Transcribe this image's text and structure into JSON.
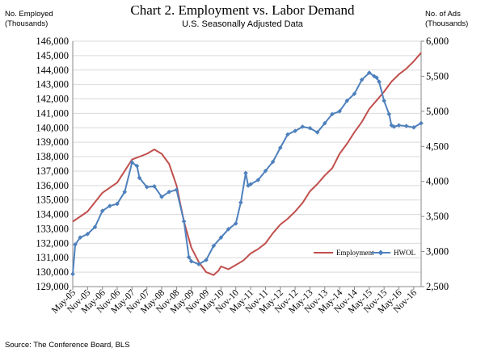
{
  "chart_data": {
    "type": "line",
    "title": "Chart 2. Employment vs. Labor Demand",
    "subtitle": "U.S. Seasonally Adjusted Data",
    "ylabel_left": [
      "No. Employed",
      "(Thousands)"
    ],
    "ylabel_right": [
      "No. of Ads",
      "(Thousands)"
    ],
    "source": "Source: The Conference Board, BLS",
    "ylim_left": [
      129000,
      146000
    ],
    "ylim_right": [
      2500,
      6000
    ],
    "yticks_left": [
      "129,000",
      "130,000",
      "131,000",
      "132,000",
      "133,000",
      "134,000",
      "135,000",
      "136,000",
      "137,000",
      "138,000",
      "139,000",
      "140,000",
      "141,000",
      "142,000",
      "143,000",
      "144,000",
      "145,000",
      "146,000"
    ],
    "yticks_right": [
      "2,500",
      "3,000",
      "3,500",
      "4,000",
      "4,500",
      "5,000",
      "5,500",
      "6,000"
    ],
    "xtick_labels": [
      "May-05",
      "Nov-05",
      "May-06",
      "Nov-06",
      "May-07",
      "Nov-07",
      "May-08",
      "Nov-08",
      "May-09",
      "Nov-09",
      "May-10",
      "Nov-10",
      "May-11",
      "Nov-11",
      "May-12",
      "Nov-12",
      "May-13",
      "Nov-13",
      "May-14",
      "Nov-14",
      "May-15",
      "Nov-15",
      "May-16",
      "Nov-16"
    ],
    "grid": true,
    "legend_position": "bottom-right",
    "series": [
      {
        "name": "Employment",
        "axis": "left",
        "color": "#c0504d",
        "points": [
          [
            "May-05",
            133500
          ],
          [
            "Nov-05",
            134200
          ],
          [
            "May-06",
            135500
          ],
          [
            "Nov-06",
            136200
          ],
          [
            "May-07",
            137800
          ],
          [
            "Nov-07",
            138200
          ],
          [
            "Feb-08",
            138500
          ],
          [
            "May-08",
            138200
          ],
          [
            "Aug-08",
            137500
          ],
          [
            "Nov-08",
            136000
          ],
          [
            "Feb-09",
            133500
          ],
          [
            "May-09",
            131700
          ],
          [
            "Aug-09",
            130700
          ],
          [
            "Nov-09",
            130000
          ],
          [
            "Feb-10",
            129800
          ],
          [
            "Apr-10",
            130100
          ],
          [
            "May-10",
            130400
          ],
          [
            "Aug-10",
            130200
          ],
          [
            "Nov-10",
            130500
          ],
          [
            "Feb-11",
            130800
          ],
          [
            "May-11",
            131300
          ],
          [
            "Aug-11",
            131600
          ],
          [
            "Nov-11",
            132000
          ],
          [
            "Feb-12",
            132700
          ],
          [
            "May-12",
            133300
          ],
          [
            "Aug-12",
            133700
          ],
          [
            "Nov-12",
            134200
          ],
          [
            "Feb-13",
            134800
          ],
          [
            "May-13",
            135600
          ],
          [
            "Aug-13",
            136100
          ],
          [
            "Nov-13",
            136700
          ],
          [
            "Feb-14",
            137200
          ],
          [
            "May-14",
            138200
          ],
          [
            "Aug-14",
            138900
          ],
          [
            "Nov-14",
            139700
          ],
          [
            "Feb-15",
            140400
          ],
          [
            "May-15",
            141300
          ],
          [
            "Aug-15",
            141900
          ],
          [
            "Nov-15",
            142500
          ],
          [
            "Feb-16",
            143200
          ],
          [
            "May-16",
            143700
          ],
          [
            "Aug-16",
            144100
          ],
          [
            "Nov-16",
            144600
          ],
          [
            "Feb-17",
            145200
          ]
        ]
      },
      {
        "name": "HWOL",
        "axis": "right",
        "color": "#4f81bd",
        "points": [
          [
            "May-05",
            2680
          ],
          [
            "Jun-05",
            3100
          ],
          [
            "Aug-05",
            3200
          ],
          [
            "Nov-05",
            3250
          ],
          [
            "Feb-06",
            3350
          ],
          [
            "May-06",
            3580
          ],
          [
            "Aug-06",
            3650
          ],
          [
            "Nov-06",
            3680
          ],
          [
            "Feb-07",
            3850
          ],
          [
            "May-07",
            4270
          ],
          [
            "Jul-07",
            4220
          ],
          [
            "Aug-07",
            4050
          ],
          [
            "Nov-07",
            3920
          ],
          [
            "Feb-08",
            3930
          ],
          [
            "May-08",
            3780
          ],
          [
            "Aug-08",
            3850
          ],
          [
            "Nov-08",
            3880
          ],
          [
            "Feb-09",
            3430
          ],
          [
            "Apr-09",
            2920
          ],
          [
            "May-09",
            2860
          ],
          [
            "Aug-09",
            2820
          ],
          [
            "Nov-09",
            2880
          ],
          [
            "Feb-10",
            3080
          ],
          [
            "May-10",
            3200
          ],
          [
            "Aug-10",
            3320
          ],
          [
            "Nov-10",
            3400
          ],
          [
            "Jan-11",
            3700
          ],
          [
            "Mar-11",
            4120
          ],
          [
            "Apr-11",
            3940
          ],
          [
            "May-11",
            3960
          ],
          [
            "Aug-11",
            4020
          ],
          [
            "Nov-11",
            4150
          ],
          [
            "Feb-12",
            4280
          ],
          [
            "May-12",
            4480
          ],
          [
            "Aug-12",
            4670
          ],
          [
            "Nov-12",
            4720
          ],
          [
            "Feb-13",
            4780
          ],
          [
            "May-13",
            4760
          ],
          [
            "Aug-13",
            4700
          ],
          [
            "Nov-13",
            4830
          ],
          [
            "Feb-14",
            4960
          ],
          [
            "May-14",
            5000
          ],
          [
            "Aug-14",
            5150
          ],
          [
            "Nov-14",
            5250
          ],
          [
            "Feb-15",
            5450
          ],
          [
            "May-15",
            5550
          ],
          [
            "Jul-15",
            5500
          ],
          [
            "Aug-15",
            5480
          ],
          [
            "Sep-15",
            5420
          ],
          [
            "Nov-15",
            5150
          ],
          [
            "Jan-16",
            4960
          ],
          [
            "Feb-16",
            4800
          ],
          [
            "Mar-16",
            4780
          ],
          [
            "May-16",
            4800
          ],
          [
            "Aug-16",
            4790
          ],
          [
            "Nov-16",
            4770
          ],
          [
            "Feb-17",
            4830
          ]
        ]
      }
    ]
  }
}
